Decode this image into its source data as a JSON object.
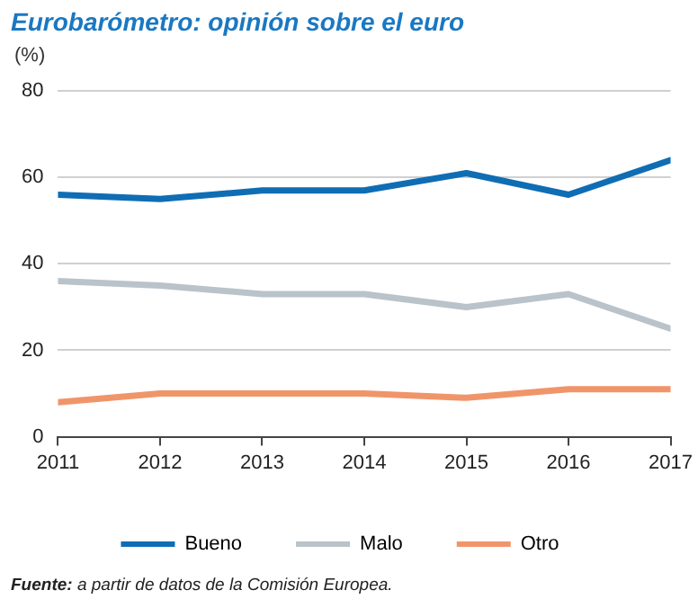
{
  "chart_data": {
    "type": "line",
    "title": "Eurobarómetro: opinión sobre el euro",
    "ylabel": "(%)",
    "x": [
      2011,
      2012,
      2013,
      2014,
      2015,
      2016,
      2017
    ],
    "xlim": [
      2011,
      2017
    ],
    "xticks": [
      2011,
      2012,
      2013,
      2014,
      2015,
      2016,
      2017
    ],
    "ylim": [
      0,
      80
    ],
    "yticks": [
      0,
      20,
      40,
      60,
      80
    ],
    "grid": "y",
    "legend": "bottom",
    "marker": "none",
    "series": [
      {
        "name": "Bueno",
        "color": "#0f6db4",
        "values": [
          56,
          55,
          57,
          57,
          61,
          56,
          64
        ]
      },
      {
        "name": "Malo",
        "color": "#b9c3c9",
        "values": [
          36,
          35,
          33,
          33,
          30,
          33,
          25
        ]
      },
      {
        "name": "Otro",
        "color": "#f0956a",
        "values": [
          8,
          10,
          10,
          10,
          9,
          11,
          11
        ]
      }
    ],
    "annotations": [
      "Fuente: a partir de datos de la Comisión Europea."
    ]
  }
}
